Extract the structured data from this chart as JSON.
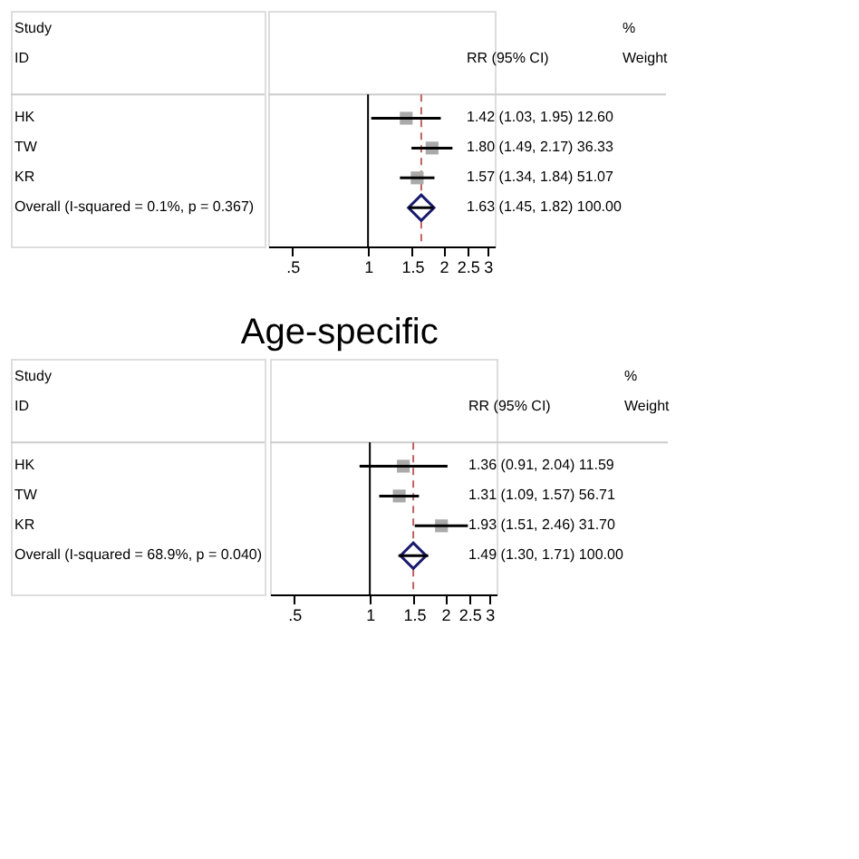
{
  "chart_data": [
    {
      "type": "scatter",
      "orientation": "horizontal",
      "categories": [
        "HK",
        "TW",
        "KR",
        "Overall  (I-squared = 0.1%, p = 0.367)"
      ],
      "series": [
        {
          "color": "#aaaaaa",
          "marker": "square",
          "values": [
            1.42,
            1.8,
            1.57,
            null
          ],
          "errors": [
            [
              1.03,
              1.95
            ],
            [
              1.49,
              2.17
            ],
            [
              1.34,
              1.84
            ],
            null
          ],
          "value_labels": [
            "1.42 (1.03, 1.95) 12.60",
            "1.80 (1.49, 2.17) 36.33",
            "1.57 (1.34, 1.84) 51.07",
            null
          ]
        },
        {
          "color": "#1a1a6e",
          "marker": "diamond",
          "values": [
            null,
            null,
            null,
            1.63
          ],
          "errors": [
            null,
            null,
            null,
            [
              1.45,
              1.82
            ]
          ],
          "value_labels": [
            null,
            null,
            null,
            "1.63 (1.45, 1.82) 100.00"
          ]
        }
      ],
      "xlim": [
        0.4,
        3.2
      ],
      "log": "x",
      "xticks": [
        {
          "value": 0.5,
          "label": ".5"
        },
        1,
        1.5,
        2,
        2.5,
        3
      ],
      "ref_lines": [
        {
          "axis": "x",
          "value": 1,
          "color": "#000000",
          "line_style": "solid"
        },
        {
          "axis": "x",
          "value": 1.63,
          "color": "#c06060",
          "line_style": "dashed"
        }
      ],
      "annotations": [
        "Study",
        "ID",
        "RR (95% CI)",
        "%",
        "Weight"
      ]
    },
    {
      "type": "scatter",
      "orientation": "horizontal",
      "title": "Age-specific",
      "categories": [
        "HK",
        "TW",
        "KR",
        "Overall  (I-squared = 68.9%, p = 0.040)"
      ],
      "series": [
        {
          "color": "#aaaaaa",
          "marker": "square",
          "values": [
            1.36,
            1.31,
            1.93,
            null
          ],
          "errors": [
            [
              0.91,
              2.04
            ],
            [
              1.09,
              1.57
            ],
            [
              1.51,
              2.46
            ],
            null
          ],
          "value_labels": [
            "1.36 (0.91, 2.04) 11.59",
            "1.31 (1.09, 1.57) 56.71",
            "1.93 (1.51, 2.46) 31.70",
            null
          ]
        },
        {
          "color": "#1a1a6e",
          "marker": "diamond",
          "values": [
            null,
            null,
            null,
            1.49
          ],
          "errors": [
            null,
            null,
            null,
            [
              1.3,
              1.71
            ]
          ],
          "value_labels": [
            null,
            null,
            null,
            "1.49 (1.30, 1.71) 100.00"
          ]
        }
      ],
      "xlim": [
        0.4,
        3.2
      ],
      "log": "x",
      "xticks": [
        {
          "value": 0.5,
          "label": ".5"
        },
        1,
        1.5,
        2,
        2.5,
        3
      ],
      "ref_lines": [
        {
          "axis": "x",
          "value": 1,
          "color": "#000000",
          "line_style": "solid"
        },
        {
          "axis": "x",
          "value": 1.49,
          "color": "#c06060",
          "line_style": "dashed"
        }
      ],
      "annotations": [
        "Study",
        "ID",
        "RR (95% CI)",
        "%",
        "Weight"
      ]
    }
  ]
}
